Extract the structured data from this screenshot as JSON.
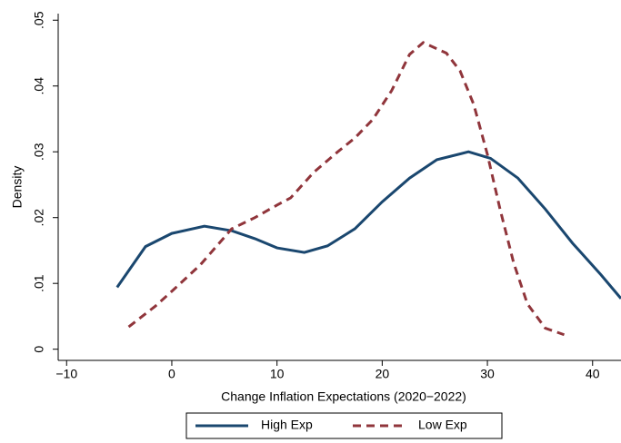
{
  "chart_data": {
    "type": "line",
    "x_label": "Change Inflation Expectations (2020−2022)",
    "y_label": "Density",
    "xlim": [
      -10.8,
      42.7
    ],
    "ylim": [
      -0.0017,
      0.051
    ],
    "xticks": [
      {
        "value": -10,
        "label": "−10"
      },
      0,
      10,
      20,
      30,
      40
    ],
    "yticks": [
      0,
      {
        "value": 0.01,
        "label": ".01"
      },
      {
        "value": 0.02,
        "label": ".02"
      },
      {
        "value": 0.03,
        "label": ".03"
      },
      {
        "value": 0.04,
        "label": ".04"
      },
      {
        "value": 0.05,
        "label": ".05"
      }
    ],
    "legend": "bottom",
    "series": [
      {
        "name": "High Exp",
        "color": "#1a476f",
        "line_style": "solid",
        "x": [
          -5.2,
          -2.5,
          0,
          3.1,
          5.7,
          7.9,
          10,
          12.6,
          14.8,
          17.4,
          20,
          22.6,
          25.2,
          28.2,
          30.3,
          32.9,
          35.5,
          38.1,
          40.8,
          42.7
        ],
        "values": [
          0.0094,
          0.0156,
          0.0176,
          0.0187,
          0.018,
          0.0168,
          0.0154,
          0.0147,
          0.0157,
          0.0183,
          0.0224,
          0.026,
          0.0288,
          0.03,
          0.029,
          0.026,
          0.0213,
          0.0161,
          0.0113,
          0.0077
        ]
      },
      {
        "name": "Low Exp",
        "color": "#90353b",
        "line_style": "dash",
        "x": [
          -4.1,
          -1.6,
          0,
          2.7,
          5.7,
          7.9,
          10,
          11.3,
          13.5,
          15.7,
          17.4,
          19.1,
          20.9,
          22.6,
          23.9,
          26.1,
          27.4,
          28.7,
          30,
          31.2,
          32.5,
          33.8,
          35.5,
          37.3
        ],
        "values": [
          0.0034,
          0.0065,
          0.0088,
          0.0128,
          0.0183,
          0.02,
          0.0219,
          0.023,
          0.0269,
          0.0299,
          0.0321,
          0.0349,
          0.0393,
          0.0448,
          0.0466,
          0.045,
          0.0423,
          0.0372,
          0.0296,
          0.0213,
          0.0131,
          0.0069,
          0.0032,
          0.0022
        ]
      }
    ]
  }
}
